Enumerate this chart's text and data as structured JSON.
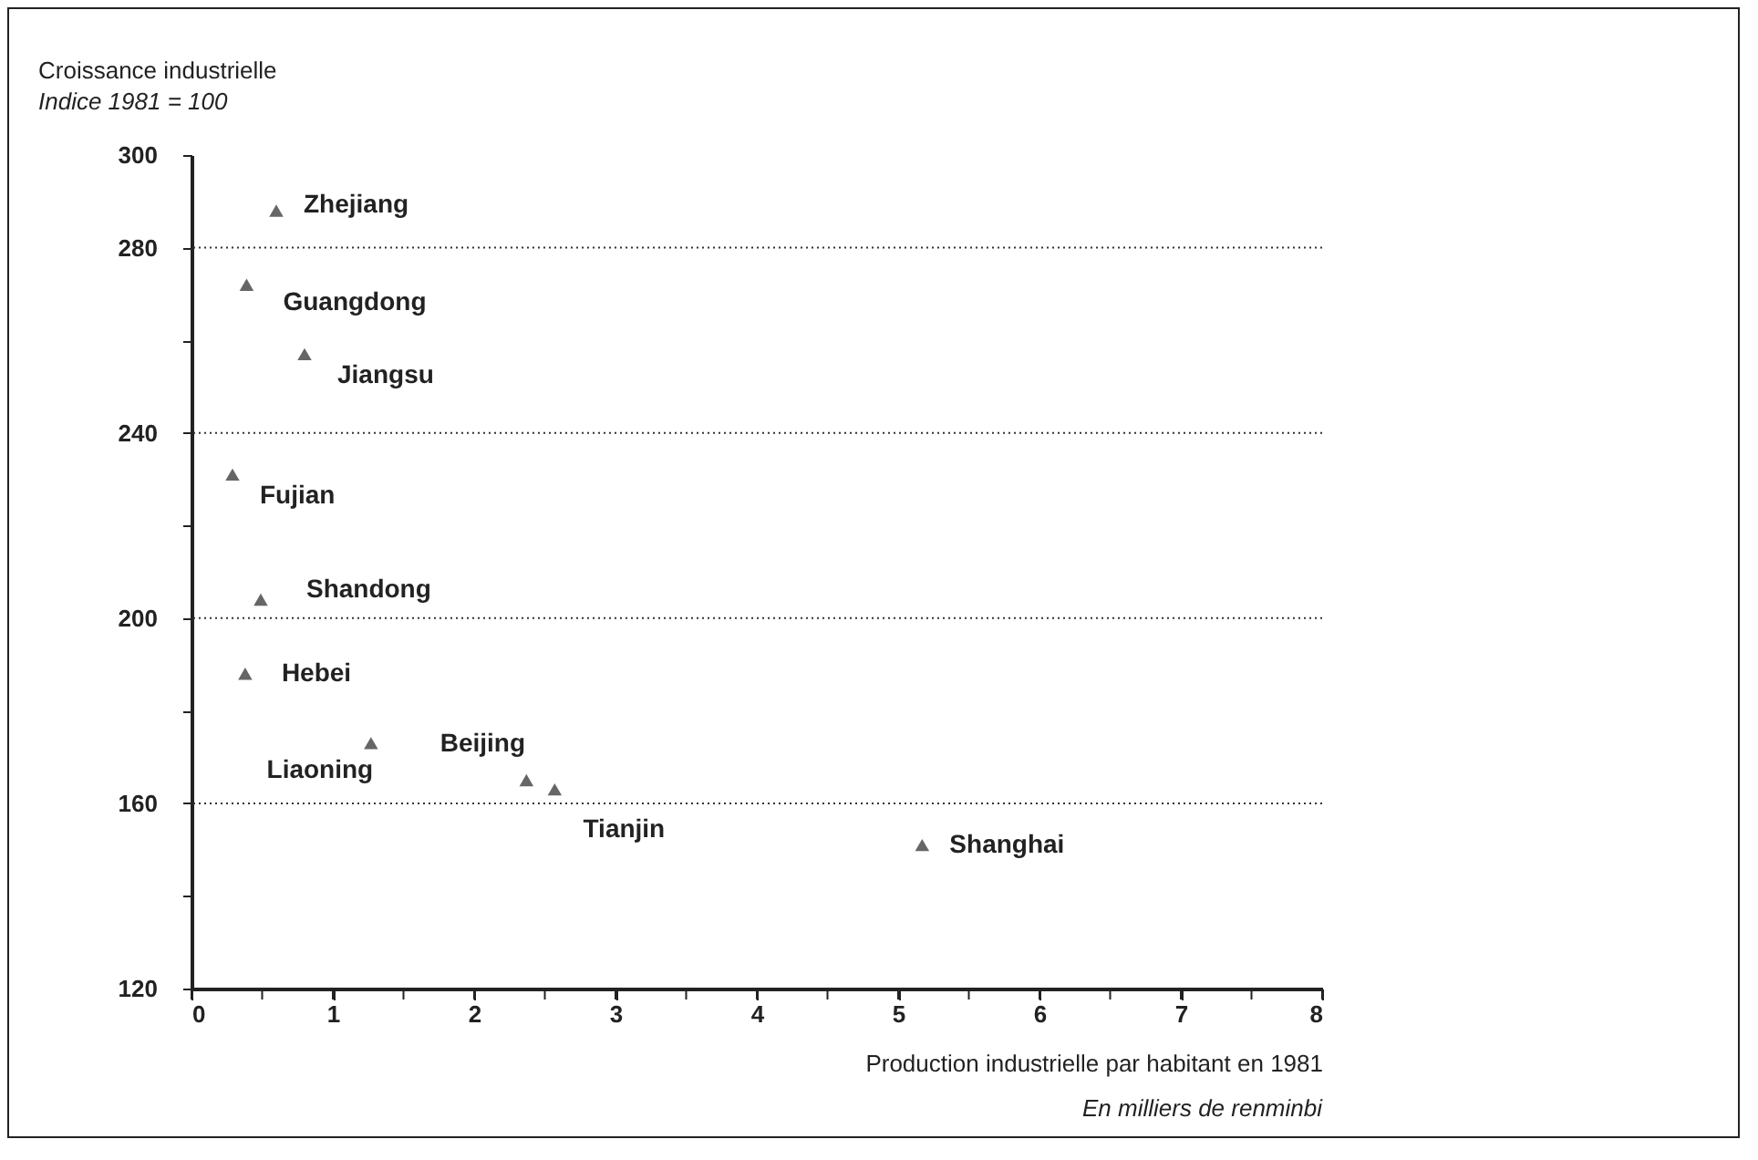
{
  "chart_data": {
    "type": "scatter",
    "title": "Croissance industrielle",
    "subtitle": "Indice 1981 = 100",
    "xlabel": "Production industrielle par habitant en 1981",
    "annotations": [
      "En milliers de renminbi"
    ],
    "marker": "triangle",
    "grid": "y",
    "legend": false,
    "xlim": [
      0,
      8
    ],
    "xticks": [
      0,
      {
        "value": 0.5,
        "label": null
      },
      1,
      {
        "value": 1.5,
        "label": null
      },
      2,
      {
        "value": 2.5,
        "label": null
      },
      3,
      {
        "value": 3.5,
        "label": null
      },
      4,
      {
        "value": 4.5,
        "label": null
      },
      5,
      {
        "value": 5.5,
        "label": null
      },
      6,
      {
        "value": 6.5,
        "label": null
      },
      7,
      {
        "value": 7.5,
        "label": null
      },
      8
    ],
    "ylim": [
      120,
      300
    ],
    "yticks": [
      120,
      {
        "value": 140,
        "label": null
      },
      160,
      {
        "value": 180,
        "label": null
      },
      200,
      {
        "value": 220,
        "label": null
      },
      240,
      {
        "value": 260,
        "label": null
      },
      280,
      300
    ],
    "series": [
      {
        "name": "Zhejiang",
        "color": "#666666",
        "x": [
          0.6
        ],
        "values": [
          288
        ]
      },
      {
        "name": "Guangdong",
        "color": "#666666",
        "x": [
          0.39
        ],
        "values": [
          272
        ]
      },
      {
        "name": "Jiangsu",
        "color": "#666666",
        "x": [
          0.8
        ],
        "values": [
          257
        ]
      },
      {
        "name": "Fujian",
        "color": "#666666",
        "x": [
          0.29
        ],
        "values": [
          231
        ]
      },
      {
        "name": "Shandong",
        "color": "#666666",
        "x": [
          0.49
        ],
        "values": [
          204
        ]
      },
      {
        "name": "Hebei",
        "color": "#666666",
        "x": [
          0.38
        ],
        "values": [
          188
        ]
      },
      {
        "name": "Liaoning",
        "color": "#666666",
        "x": [
          1.27
        ],
        "values": [
          173
        ]
      },
      {
        "name": "Beijing",
        "color": "#666666",
        "x": [
          2.37
        ],
        "values": [
          165
        ]
      },
      {
        "name": "Tianjin",
        "color": "#666666",
        "x": [
          2.57
        ],
        "values": [
          163
        ]
      },
      {
        "name": "Shanghai",
        "color": "#666666",
        "x": [
          5.17
        ],
        "values": [
          151
        ]
      }
    ]
  }
}
